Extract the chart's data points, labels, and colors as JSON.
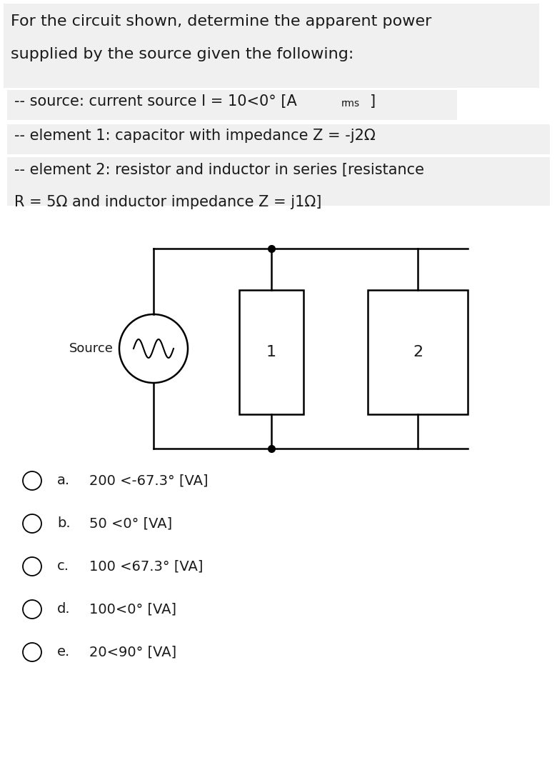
{
  "bg_color": "#f0f0f0",
  "white": "#ffffff",
  "title_text": "For the circuit shown, determine the apparent power\nsupplied by the source given the following:",
  "line1": "-- source: current source I = 10<0° [A",
  "line1_rms": "rms",
  "line1_end": "]",
  "line2": "-- element 1: capacitor with impedance Z = -j2Ω",
  "line3a": "-- element 2: resistor and inductor in series [resistance",
  "line3b": "R = 5Ω and inductor impedance Z = j1Ω]",
  "choices": [
    [
      "a.",
      "200 <-67.3° [VA]"
    ],
    [
      "b.",
      "50 <0° [VA]"
    ],
    [
      "c.",
      "100 <67.3° [VA]"
    ],
    [
      "d.",
      "100<0° [VA]"
    ],
    [
      "e.",
      "20<90° [VA]"
    ]
  ],
  "font_size_title": 16,
  "font_size_body": 15,
  "font_size_choices": 14,
  "text_color": "#1a1a1a"
}
